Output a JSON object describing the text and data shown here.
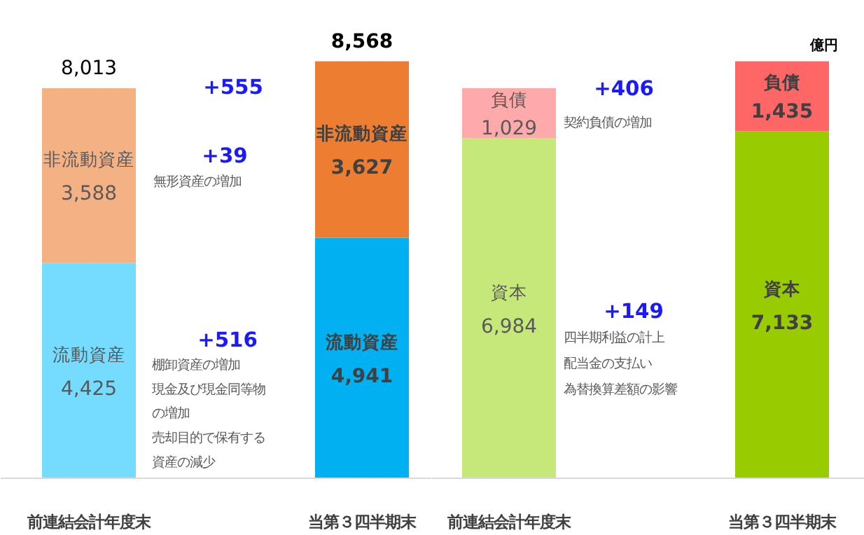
{
  "chart_data": [
    {
      "type": "bar",
      "stacked": true,
      "categories": [
        "前連結会計年度末",
        "当第３四半期末"
      ],
      "totals": [
        "8,013",
        "8,568"
      ],
      "series": [
        {
          "name": "流動資産",
          "colors": [
            "#75dbff",
            "#00b0f0"
          ],
          "values": [
            4425,
            4941
          ],
          "value_labels": [
            "4,425",
            "4,941"
          ]
        },
        {
          "name": "非流動資産",
          "colors": [
            "#f4b183",
            "#ed7d31"
          ],
          "values": [
            3588,
            3627
          ],
          "value_labels": [
            "3,588",
            "3,627"
          ]
        }
      ],
      "annotations": [
        "+555",
        "+39",
        "無形資産の増加",
        "+516",
        "棚卸資産の増加",
        "現金及び現金同等物",
        "の増加",
        "売却目的で保有する",
        "資産の減少"
      ]
    },
    {
      "type": "bar",
      "stacked": true,
      "categories": [
        "前連結会計年度末",
        "当第３四半期末"
      ],
      "series": [
        {
          "name": "資本",
          "colors": [
            "#c5e879",
            "#99cc00"
          ],
          "values": [
            6984,
            7133
          ],
          "value_labels": [
            "6,984",
            "7,133"
          ]
        },
        {
          "name": "負債",
          "colors": [
            "#ffaaaa",
            "#ff6666"
          ],
          "values": [
            1029,
            1435
          ],
          "value_labels": [
            "1,029",
            "1,435"
          ]
        }
      ],
      "annotations": [
        "+406",
        "契約負債の増加",
        "+149",
        "四半期利益の計上",
        "配当金の支払い",
        "為替換算差額の影響",
        "億円"
      ]
    }
  ]
}
